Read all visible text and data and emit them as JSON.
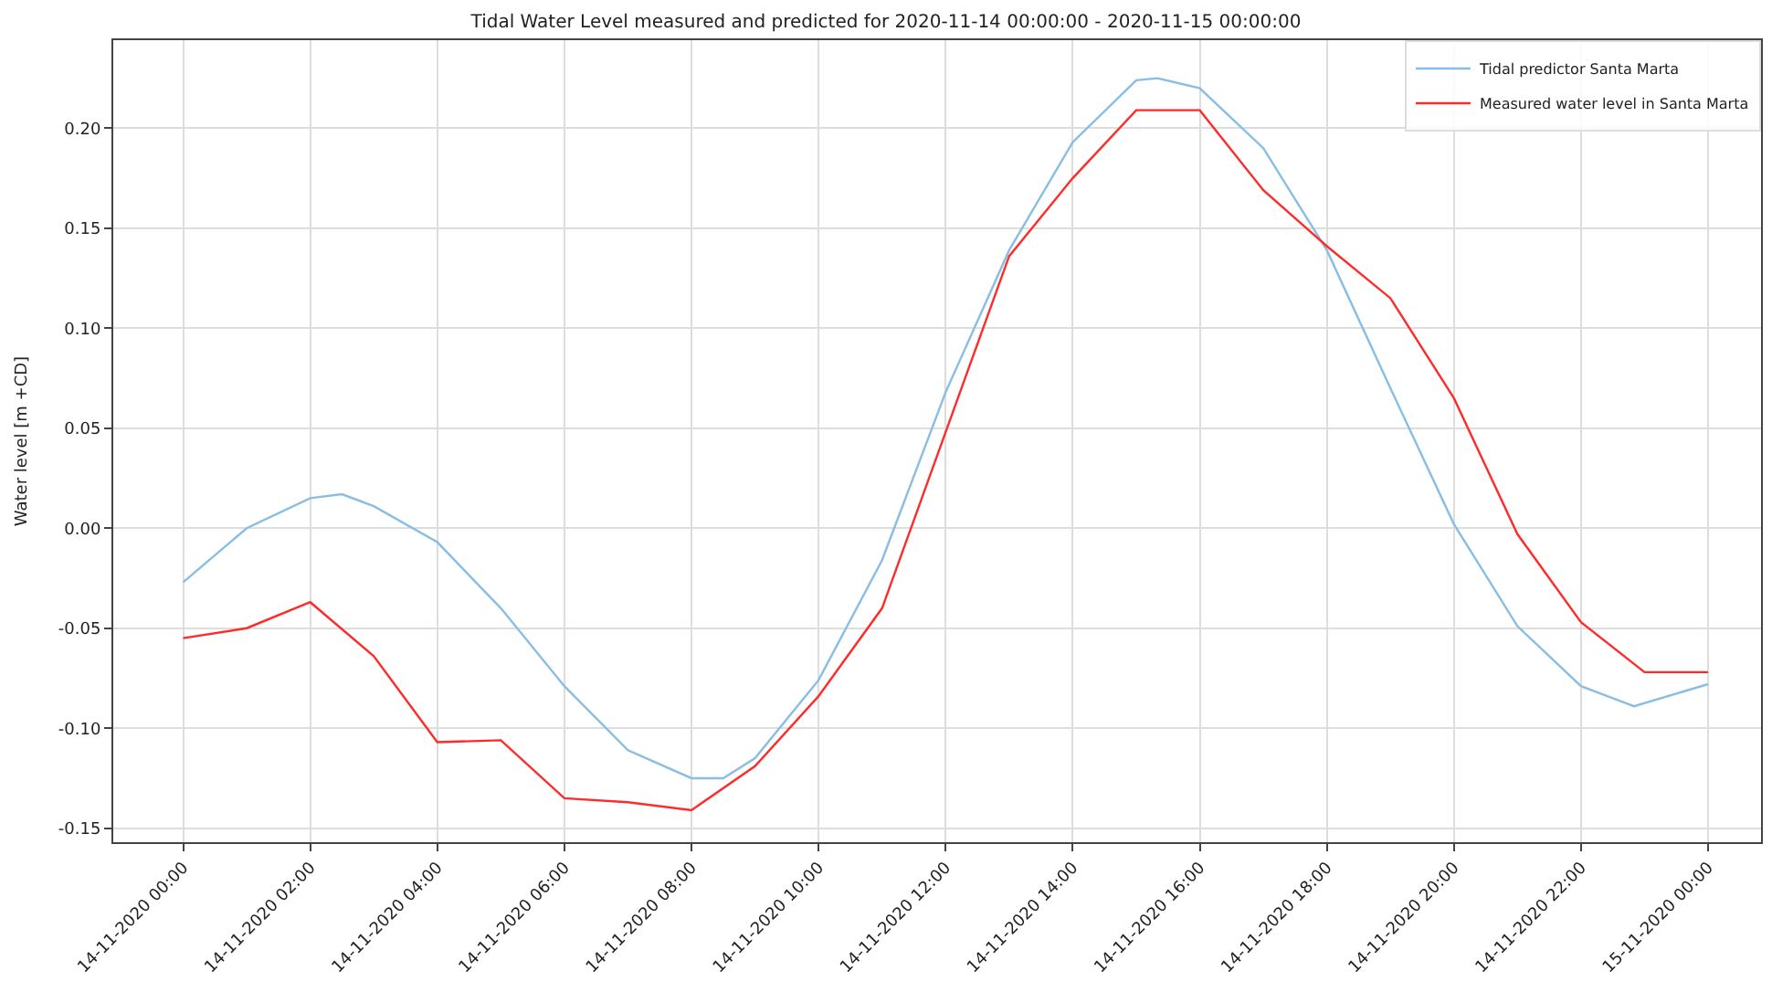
{
  "chart_data": {
    "type": "line",
    "title": "Tidal Water Level measured and predicted for 2020-11-14 00:00:00 - 2020-11-15 00:00:00",
    "ylabel": "Water level [m +CD]",
    "xlim": [
      "2020-11-13T22:54",
      "2020-11-15T00:50"
    ],
    "xticks": [
      {
        "value": "2020-11-14T00:00",
        "label": "14-11-2020 00:00"
      },
      {
        "value": "2020-11-14T02:00",
        "label": "14-11-2020 02:00"
      },
      {
        "value": "2020-11-14T04:00",
        "label": "14-11-2020 04:00"
      },
      {
        "value": "2020-11-14T06:00",
        "label": "14-11-2020 06:00"
      },
      {
        "value": "2020-11-14T08:00",
        "label": "14-11-2020 08:00"
      },
      {
        "value": "2020-11-14T10:00",
        "label": "14-11-2020 10:00"
      },
      {
        "value": "2020-11-14T12:00",
        "label": "14-11-2020 12:00"
      },
      {
        "value": "2020-11-14T14:00",
        "label": "14-11-2020 14:00"
      },
      {
        "value": "2020-11-14T16:00",
        "label": "14-11-2020 16:00"
      },
      {
        "value": "2020-11-14T18:00",
        "label": "14-11-2020 18:00"
      },
      {
        "value": "2020-11-14T20:00",
        "label": "14-11-2020 20:00"
      },
      {
        "value": "2020-11-14T22:00",
        "label": "14-11-2020 22:00"
      },
      {
        "value": "2020-11-15T00:00",
        "label": "15-11-2020 00:00"
      }
    ],
    "ylim": [
      -0.157,
      0.244
    ],
    "yticks": [
      {
        "value": -0.15,
        "label": "-0.15"
      },
      {
        "value": -0.1,
        "label": "-0.10"
      },
      {
        "value": -0.05,
        "label": "-0.05"
      },
      {
        "value": 0,
        "label": "0.00"
      },
      {
        "value": 0.05,
        "label": "0.05"
      },
      {
        "value": 0.1,
        "label": "0.10"
      },
      {
        "value": 0.15,
        "label": "0.15"
      },
      {
        "value": 0.2,
        "label": "0.20"
      }
    ],
    "grid": true,
    "legend": "top right",
    "marker": "none",
    "line_style": "solid",
    "series": [
      {
        "name": "Tidal predictor Santa Marta",
        "color": "#88bde6",
        "x": [
          "2020-11-14T00:00",
          "2020-11-14T01:00",
          "2020-11-14T02:00",
          "2020-11-14T02:30",
          "2020-11-14T03:00",
          "2020-11-14T04:00",
          "2020-11-14T05:00",
          "2020-11-14T06:00",
          "2020-11-14T07:00",
          "2020-11-14T08:00",
          "2020-11-14T08:30",
          "2020-11-14T09:00",
          "2020-11-14T10:00",
          "2020-11-14T11:00",
          "2020-11-14T12:00",
          "2020-11-14T13:00",
          "2020-11-14T14:00",
          "2020-11-14T15:00",
          "2020-11-14T15:20",
          "2020-11-14T16:00",
          "2020-11-14T17:00",
          "2020-11-14T18:00",
          "2020-11-14T19:00",
          "2020-11-14T20:00",
          "2020-11-14T21:00",
          "2020-11-14T22:00",
          "2020-11-14T22:50",
          "2020-11-15T00:00"
        ],
        "values": [
          -0.027,
          0.0,
          0.015,
          0.017,
          0.011,
          -0.007,
          -0.04,
          -0.079,
          -0.111,
          -0.125,
          -0.125,
          -0.115,
          -0.076,
          -0.016,
          0.068,
          0.139,
          0.193,
          0.224,
          0.225,
          0.22,
          0.19,
          0.139,
          0.07,
          0.002,
          -0.049,
          -0.079,
          -0.089,
          -0.078
        ]
      },
      {
        "name": "Measured water level in Santa Marta",
        "color": "#ff2b2b",
        "x": [
          "2020-11-14T00:00",
          "2020-11-14T01:00",
          "2020-11-14T02:00",
          "2020-11-14T03:00",
          "2020-11-14T04:00",
          "2020-11-14T05:00",
          "2020-11-14T06:00",
          "2020-11-14T07:00",
          "2020-11-14T08:00",
          "2020-11-14T09:00",
          "2020-11-14T10:00",
          "2020-11-14T11:00",
          "2020-11-14T12:00",
          "2020-11-14T13:00",
          "2020-11-14T14:00",
          "2020-11-14T15:00",
          "2020-11-14T16:00",
          "2020-11-14T17:00",
          "2020-11-14T18:00",
          "2020-11-14T19:00",
          "2020-11-14T20:00",
          "2020-11-14T21:00",
          "2020-11-14T22:00",
          "2020-11-14T23:00",
          "2020-11-15T00:00"
        ],
        "values": [
          -0.055,
          -0.05,
          -0.037,
          -0.064,
          -0.107,
          -0.106,
          -0.135,
          -0.137,
          -0.141,
          -0.119,
          -0.084,
          -0.04,
          0.048,
          0.136,
          0.175,
          0.209,
          0.209,
          0.169,
          0.141,
          0.115,
          0.065,
          -0.003,
          -0.047,
          -0.072,
          -0.072
        ]
      }
    ]
  }
}
